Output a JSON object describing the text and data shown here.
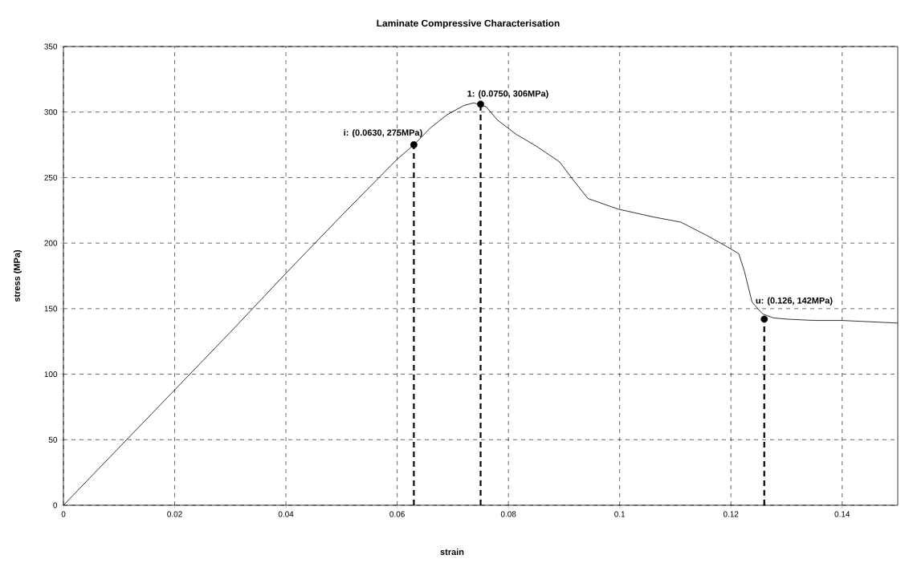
{
  "chart_data": {
    "type": "line",
    "title": "Laminate Compressive Characterisation",
    "xlabel": "strain",
    "ylabel": "stress (MPa)",
    "xlim": [
      0,
      0.15
    ],
    "ylim": [
      0,
      350
    ],
    "xticks": [
      0,
      0.02,
      0.04,
      0.06,
      0.08,
      0.1,
      0.12,
      0.14
    ],
    "yticks": [
      0,
      50,
      100,
      150,
      200,
      250,
      300,
      350
    ],
    "grid": true,
    "series": [
      {
        "color": "#000000",
        "line_style": "solid",
        "marker": "none",
        "x": [
          0,
          0.01,
          0.02,
          0.03,
          0.04,
          0.05,
          0.06,
          0.063,
          0.066,
          0.069,
          0.072,
          0.0738,
          0.076,
          0.078,
          0.0814,
          0.085,
          0.0892,
          0.0915,
          0.0943,
          0.0997,
          0.106,
          0.111,
          0.1156,
          0.119,
          0.1214,
          0.1224,
          0.1238,
          0.1257,
          0.1276,
          0.13,
          0.135,
          0.14,
          0.145,
          0.15
        ],
        "values": [
          0,
          44,
          88,
          132,
          177,
          221,
          264,
          275,
          288,
          298,
          305,
          307,
          304,
          294,
          283,
          274,
          262,
          249,
          234,
          226,
          220,
          216,
          206,
          198,
          192,
          179,
          155,
          146,
          143,
          142,
          141,
          141,
          140,
          139
        ]
      },
      {
        "type": "line",
        "color": "#000000",
        "line_style": "dashed",
        "marker": "none",
        "x": [
          0.063,
          0.063
        ],
        "values": [
          0,
          275
        ]
      },
      {
        "type": "line",
        "color": "#000000",
        "line_style": "dashed",
        "marker": "none",
        "x": [
          0.075,
          0.075
        ],
        "values": [
          0,
          306
        ]
      },
      {
        "type": "line",
        "color": "#000000",
        "line_style": "dashed",
        "marker": "none",
        "x": [
          0.126,
          0.126
        ],
        "values": [
          0,
          142
        ]
      },
      {
        "type": "scatter",
        "color": "#000000",
        "marker": "circle",
        "x": [
          0.063,
          0.075,
          0.126
        ],
        "values": [
          275,
          306,
          142
        ]
      }
    ],
    "annotations": [
      {
        "text": "i: (0.0630, 275MPa)",
        "x": 0.063,
        "y": 275
      },
      {
        "text": "1: (0.0750, 306MPa)",
        "x": 0.075,
        "y": 306
      },
      {
        "text": "u: (0.126, 142MPa)",
        "x": 0.126,
        "y": 142
      }
    ]
  }
}
